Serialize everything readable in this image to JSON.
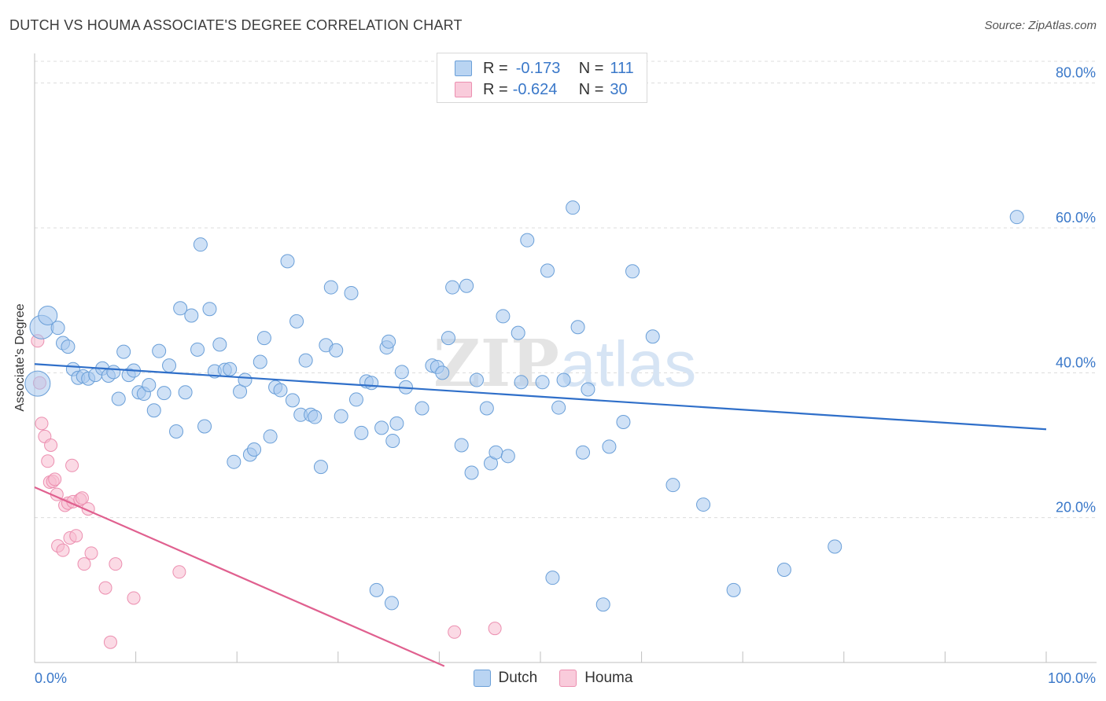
{
  "title": "DUTCH VS HOUMA ASSOCIATE'S DEGREE CORRELATION CHART",
  "source": "Source: ZipAtlas.com",
  "watermark": {
    "zip": "ZIP",
    "atlas": "atlas"
  },
  "legend_top": [
    {
      "r_label": "R =",
      "r_value": "-0.173",
      "n_label": "N =",
      "n_value": "111"
    },
    {
      "r_label": "R =",
      "r_value": "-0.624",
      "n_label": "N =",
      "n_value": "30"
    }
  ],
  "colors": {
    "dutch_fill": "#a8c8ee",
    "dutch_stroke": "#6a9fd8",
    "dutch_line": "#2f6fc9",
    "houma_fill": "#f7bcd0",
    "houma_stroke": "#ec8fb0",
    "houma_line": "#e0608f",
    "axis_text": "#3a78c9",
    "grid": "#dcdcdc"
  },
  "chart_data": {
    "type": "scatter",
    "title": "DUTCH VS HOUMA ASSOCIATE'S DEGREE CORRELATION CHART",
    "xlabel": "",
    "ylabel": "Associate's Degree",
    "xlim": [
      0,
      100
    ],
    "ylim": [
      0,
      83
    ],
    "x_tick_labels": [
      "0.0%",
      "100.0%"
    ],
    "y_ticks": [
      20,
      40,
      60,
      80
    ],
    "y_tick_labels": [
      "20.0%",
      "40.0%",
      "60.0%",
      "80.0%"
    ],
    "grid": true,
    "legend": "bottom-center",
    "series": [
      {
        "name": "Dutch",
        "r": -0.173,
        "n": 111,
        "trend": {
          "x": [
            0,
            100
          ],
          "y": [
            41.2,
            32.2
          ]
        },
        "points": [
          [
            0.3,
            38.5
          ],
          [
            0.7,
            46.3
          ],
          [
            1.3,
            47.9
          ],
          [
            2.3,
            46.2
          ],
          [
            2.8,
            44.1
          ],
          [
            3.3,
            43.6
          ],
          [
            3.8,
            40.5
          ],
          [
            4.3,
            39.3
          ],
          [
            4.8,
            39.5
          ],
          [
            5.3,
            39.2
          ],
          [
            6.0,
            39.7
          ],
          [
            6.7,
            40.6
          ],
          [
            7.3,
            39.6
          ],
          [
            7.8,
            40.1
          ],
          [
            8.3,
            36.4
          ],
          [
            8.8,
            42.9
          ],
          [
            9.3,
            39.7
          ],
          [
            9.8,
            40.3
          ],
          [
            10.3,
            37.3
          ],
          [
            10.8,
            37.1
          ],
          [
            11.3,
            38.3
          ],
          [
            11.8,
            34.8
          ],
          [
            12.3,
            43.0
          ],
          [
            12.8,
            37.2
          ],
          [
            13.3,
            41.0
          ],
          [
            14.0,
            31.9
          ],
          [
            14.4,
            48.9
          ],
          [
            14.9,
            37.3
          ],
          [
            15.5,
            47.9
          ],
          [
            16.1,
            43.2
          ],
          [
            16.4,
            57.7
          ],
          [
            16.8,
            32.6
          ],
          [
            17.3,
            48.8
          ],
          [
            17.8,
            40.2
          ],
          [
            18.3,
            43.9
          ],
          [
            18.8,
            40.4
          ],
          [
            19.3,
            40.5
          ],
          [
            19.7,
            27.7
          ],
          [
            20.3,
            37.4
          ],
          [
            20.8,
            39.0
          ],
          [
            21.3,
            28.7
          ],
          [
            21.7,
            29.4
          ],
          [
            22.3,
            41.5
          ],
          [
            22.7,
            44.8
          ],
          [
            23.3,
            31.2
          ],
          [
            23.8,
            38.0
          ],
          [
            24.3,
            37.6
          ],
          [
            25.0,
            55.4
          ],
          [
            25.5,
            36.2
          ],
          [
            25.9,
            47.1
          ],
          [
            26.3,
            34.2
          ],
          [
            26.8,
            41.7
          ],
          [
            27.3,
            34.2
          ],
          [
            27.7,
            33.9
          ],
          [
            28.3,
            27.0
          ],
          [
            28.8,
            43.8
          ],
          [
            29.3,
            51.8
          ],
          [
            29.8,
            43.1
          ],
          [
            30.3,
            34.0
          ],
          [
            31.3,
            51.0
          ],
          [
            31.8,
            36.3
          ],
          [
            32.3,
            31.7
          ],
          [
            32.8,
            38.8
          ],
          [
            33.3,
            38.6
          ],
          [
            34.3,
            32.4
          ],
          [
            34.8,
            43.5
          ],
          [
            35.0,
            44.3
          ],
          [
            35.4,
            30.6
          ],
          [
            35.8,
            33.0
          ],
          [
            36.3,
            40.1
          ],
          [
            36.7,
            38.0
          ],
          [
            38.3,
            35.1
          ],
          [
            39.3,
            41.0
          ],
          [
            39.8,
            40.8
          ],
          [
            40.3,
            40.0
          ],
          [
            40.9,
            44.8
          ],
          [
            41.3,
            51.8
          ],
          [
            42.2,
            30.0
          ],
          [
            42.7,
            52.0
          ],
          [
            43.2,
            26.2
          ],
          [
            43.7,
            39.0
          ],
          [
            44.7,
            35.1
          ],
          [
            45.1,
            27.5
          ],
          [
            45.6,
            29.0
          ],
          [
            46.3,
            47.8
          ],
          [
            46.8,
            28.5
          ],
          [
            47.8,
            45.5
          ],
          [
            48.1,
            38.7
          ],
          [
            48.7,
            58.3
          ],
          [
            50.2,
            38.7
          ],
          [
            50.7,
            54.1
          ],
          [
            51.2,
            11.7
          ],
          [
            51.8,
            35.2
          ],
          [
            52.3,
            39.0
          ],
          [
            53.2,
            62.8
          ],
          [
            53.7,
            46.3
          ],
          [
            54.2,
            29.0
          ],
          [
            54.7,
            37.7
          ],
          [
            56.2,
            8.0
          ],
          [
            56.8,
            29.8
          ],
          [
            58.2,
            33.2
          ],
          [
            59.1,
            54.0
          ],
          [
            61.1,
            45.0
          ],
          [
            63.1,
            24.5
          ],
          [
            66.1,
            21.8
          ],
          [
            69.1,
            10.0
          ],
          [
            74.1,
            12.8
          ],
          [
            79.1,
            16.0
          ],
          [
            97.1,
            61.5
          ],
          [
            33.8,
            10.0
          ],
          [
            35.3,
            8.2
          ]
        ]
      },
      {
        "name": "Houma",
        "r": -0.624,
        "n": 30,
        "trend": {
          "x": [
            0,
            40.5
          ],
          "y": [
            24.2,
            -0.5
          ]
        },
        "points": [
          [
            0.3,
            44.4
          ],
          [
            0.5,
            38.6
          ],
          [
            0.7,
            33.0
          ],
          [
            1.0,
            31.2
          ],
          [
            1.3,
            27.8
          ],
          [
            1.5,
            24.9
          ],
          [
            1.6,
            30.0
          ],
          [
            1.8,
            25.0
          ],
          [
            2.0,
            25.3
          ],
          [
            2.2,
            23.2
          ],
          [
            2.3,
            16.1
          ],
          [
            2.8,
            15.5
          ],
          [
            3.0,
            21.7
          ],
          [
            3.3,
            22.0
          ],
          [
            3.5,
            17.2
          ],
          [
            3.7,
            27.2
          ],
          [
            3.8,
            22.2
          ],
          [
            4.1,
            17.5
          ],
          [
            4.5,
            22.5
          ],
          [
            4.7,
            22.7
          ],
          [
            4.9,
            13.6
          ],
          [
            5.3,
            21.2
          ],
          [
            5.6,
            15.1
          ],
          [
            7.0,
            10.3
          ],
          [
            7.5,
            2.8
          ],
          [
            8.0,
            13.6
          ],
          [
            9.8,
            8.9
          ],
          [
            14.3,
            12.5
          ],
          [
            41.5,
            4.2
          ],
          [
            45.5,
            4.7
          ]
        ]
      }
    ]
  },
  "bottom_legend": [
    "Dutch",
    "Houma"
  ]
}
